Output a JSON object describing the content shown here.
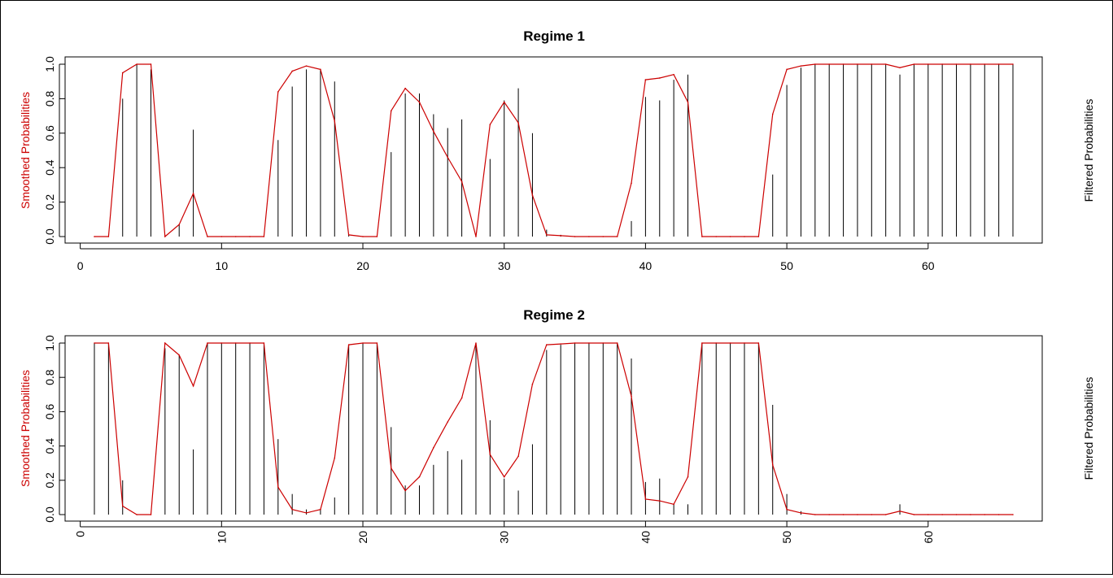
{
  "chart_data": [
    {
      "type": "line",
      "title": "Regime 1",
      "ylabel_left": "Smoothed Probabilities",
      "ylabel_right": "Filtered Probabilities",
      "xlim": [
        0,
        70
      ],
      "ylim": [
        0,
        1
      ],
      "xticks": [
        0,
        10,
        20,
        30,
        40,
        50,
        60
      ],
      "yticks": [
        "0.0",
        "0.2",
        "0.4",
        "0.6",
        "0.8",
        "1.0"
      ],
      "colors": {
        "smoothed": "#cc0000",
        "filtered": "#000000",
        "left_label": "#cc0000"
      },
      "series": [
        {
          "render": "line",
          "x": [
            1,
            2,
            3,
            4,
            5,
            6,
            7,
            8,
            9,
            10,
            11,
            12,
            13,
            14,
            15,
            16,
            17,
            18,
            19,
            20,
            21,
            22,
            23,
            24,
            25,
            26,
            27,
            28,
            29,
            30,
            31,
            32,
            33,
            34,
            35,
            36,
            37,
            38,
            39,
            40,
            41,
            42,
            43,
            44,
            45,
            46,
            47,
            48,
            49,
            50,
            51,
            52,
            53,
            54,
            55,
            56,
            57,
            58,
            59,
            60,
            61,
            62,
            63,
            64,
            65,
            66
          ],
          "y": [
            0,
            0,
            0.95,
            1,
            1,
            0,
            0.07,
            0.25,
            0,
            0,
            0,
            0,
            0,
            0.84,
            0.96,
            0.99,
            0.97,
            0.67,
            0.01,
            0,
            0,
            0.73,
            0.86,
            0.78,
            0.61,
            0.46,
            0.32,
            0,
            0.65,
            0.78,
            0.66,
            0.24,
            0.01,
            0.005,
            0,
            0,
            0,
            0,
            0.31,
            0.91,
            0.92,
            0.94,
            0.78,
            0,
            0,
            0,
            0,
            0,
            0.71,
            0.97,
            0.99,
            1,
            1,
            1,
            1,
            1,
            1,
            0.98,
            1,
            1,
            1,
            1,
            1,
            1,
            1,
            1
          ]
        },
        {
          "render": "h",
          "x": [
            1,
            2,
            3,
            4,
            5,
            6,
            7,
            8,
            9,
            10,
            11,
            12,
            13,
            14,
            15,
            16,
            17,
            18,
            19,
            20,
            21,
            22,
            23,
            24,
            25,
            26,
            27,
            28,
            29,
            30,
            31,
            32,
            33,
            34,
            35,
            36,
            37,
            38,
            39,
            40,
            41,
            42,
            43,
            44,
            45,
            46,
            47,
            48,
            49,
            50,
            51,
            52,
            53,
            54,
            55,
            56,
            57,
            58,
            59,
            60,
            61,
            62,
            63,
            64,
            65,
            66
          ],
          "y": [
            0,
            0,
            0.8,
            1,
            0.97,
            0,
            0.07,
            0.62,
            0,
            0,
            0,
            0,
            0,
            0.56,
            0.87,
            0.97,
            0.97,
            0.9,
            0.01,
            0,
            0,
            0.49,
            0.83,
            0.83,
            0.71,
            0.63,
            0.68,
            0,
            0.45,
            0.79,
            0.86,
            0.6,
            0.04,
            0.01,
            0,
            0,
            0,
            0,
            0.09,
            0.81,
            0.79,
            0.91,
            0.94,
            0,
            0,
            0,
            0,
            0,
            0.36,
            0.88,
            0.98,
            1,
            1,
            1,
            1,
            1,
            1,
            0.94,
            1,
            1,
            1,
            1,
            1,
            1,
            1,
            1
          ]
        }
      ]
    },
    {
      "type": "line",
      "title": "Regime 2",
      "ylabel_left": "Smoothed Probabilities",
      "ylabel_right": "Filtered Probabilities",
      "xlim": [
        0,
        70
      ],
      "ylim": [
        0,
        1
      ],
      "xticks": [
        0,
        10,
        20,
        30,
        40,
        50,
        60
      ],
      "yticks": [
        "0.0",
        "0.2",
        "0.4",
        "0.6",
        "0.8",
        "1.0"
      ],
      "colors": {
        "smoothed": "#cc0000",
        "filtered": "#000000",
        "left_label": "#cc0000"
      },
      "series": [
        {
          "render": "line",
          "x": [
            1,
            2,
            3,
            4,
            5,
            6,
            7,
            8,
            9,
            10,
            11,
            12,
            13,
            14,
            15,
            16,
            17,
            18,
            19,
            20,
            21,
            22,
            23,
            24,
            25,
            26,
            27,
            28,
            29,
            30,
            31,
            32,
            33,
            34,
            35,
            36,
            37,
            38,
            39,
            40,
            41,
            42,
            43,
            44,
            45,
            46,
            47,
            48,
            49,
            50,
            51,
            52,
            53,
            54,
            55,
            56,
            57,
            58,
            59,
            60,
            61,
            62,
            63,
            64,
            65,
            66
          ],
          "y": [
            1,
            1,
            0.05,
            0,
            0,
            1,
            0.93,
            0.75,
            1,
            1,
            1,
            1,
            1,
            0.16,
            0.03,
            0.01,
            0.03,
            0.33,
            0.99,
            1,
            1,
            0.27,
            0.14,
            0.22,
            0.39,
            0.54,
            0.68,
            1,
            0.35,
            0.22,
            0.34,
            0.76,
            0.99,
            0.995,
            1,
            1,
            1,
            1,
            0.69,
            0.09,
            0.08,
            0.06,
            0.22,
            1,
            1,
            1,
            1,
            1,
            0.29,
            0.03,
            0.01,
            0,
            0,
            0,
            0,
            0,
            0,
            0.02,
            0,
            0,
            0,
            0,
            0,
            0,
            0,
            0
          ]
        },
        {
          "render": "h",
          "x": [
            1,
            2,
            3,
            4,
            5,
            6,
            7,
            8,
            9,
            10,
            11,
            12,
            13,
            14,
            15,
            16,
            17,
            18,
            19,
            20,
            21,
            22,
            23,
            24,
            25,
            26,
            27,
            28,
            29,
            30,
            31,
            32,
            33,
            34,
            35,
            36,
            37,
            38,
            39,
            40,
            41,
            42,
            43,
            44,
            45,
            46,
            47,
            48,
            49,
            50,
            51,
            52,
            53,
            54,
            55,
            56,
            57,
            58,
            59,
            60,
            61,
            62,
            63,
            64,
            65,
            66
          ],
          "y": [
            1,
            1,
            0.2,
            0,
            0,
            0.97,
            0.93,
            0.38,
            1,
            1,
            1,
            1,
            1,
            0.44,
            0.12,
            0.03,
            0.03,
            0.1,
            0.99,
            1,
            1,
            0.51,
            0.17,
            0.17,
            0.29,
            0.37,
            0.32,
            1,
            0.55,
            0.21,
            0.14,
            0.41,
            0.96,
            0.99,
            1,
            1,
            1,
            1,
            0.91,
            0.19,
            0.21,
            0.06,
            0.06,
            1,
            1,
            1,
            1,
            1,
            0.64,
            0.12,
            0.02,
            0,
            0,
            0,
            0,
            0,
            0,
            0.06,
            0,
            0,
            0,
            0,
            0,
            0,
            0,
            0
          ]
        }
      ]
    }
  ]
}
